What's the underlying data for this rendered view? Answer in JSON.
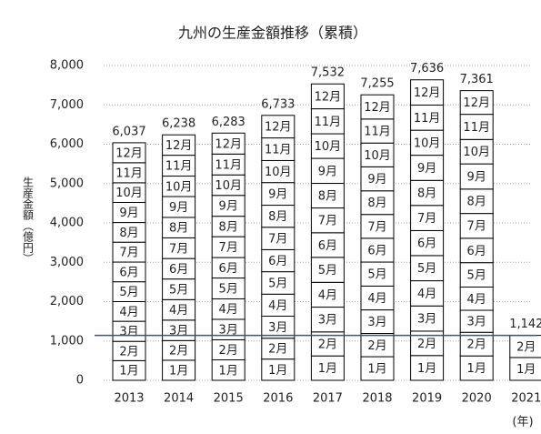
{
  "chart_data": {
    "type": "stacked-bar",
    "title": "九州の生産金額推移（累積）",
    "y_label": "生産金額（億円）",
    "x_unit": "(年)",
    "categories": [
      "2013",
      "2014",
      "2015",
      "2016",
      "2017",
      "2018",
      "2019",
      "2020",
      "2021"
    ],
    "series": [
      {
        "name": "1月",
        "color": "#ffffff",
        "values": [
          500,
          510,
          520,
          540,
          620,
          600,
          630,
          620,
          580
        ]
      },
      {
        "name": "2月",
        "color": "#ffffff",
        "values": [
          490,
          500,
          510,
          530,
          610,
          590,
          620,
          600,
          562
        ]
      },
      {
        "name": "3月",
        "color": "#ffffff",
        "values": [
          510,
          520,
          520,
          560,
          630,
          600,
          640,
          560,
          null
        ]
      },
      {
        "name": "4月",
        "color": "#ffffff",
        "values": [
          500,
          520,
          520,
          560,
          630,
          605,
          640,
          590,
          null
        ]
      },
      {
        "name": "5月",
        "color": "#ffffff",
        "values": [
          505,
          525,
          530,
          570,
          635,
          610,
          640,
          620,
          null
        ]
      },
      {
        "name": "6月",
        "color": "#ffffff",
        "values": [
          500,
          520,
          520,
          560,
          625,
          605,
          635,
          620,
          null
        ]
      },
      {
        "name": "7月",
        "color": "#ffffff",
        "values": [
          505,
          525,
          530,
          570,
          630,
          605,
          640,
          630,
          null
        ]
      },
      {
        "name": "8月",
        "color": "#ffffff",
        "values": [
          500,
          520,
          520,
          560,
          625,
          600,
          635,
          620,
          null
        ]
      },
      {
        "name": "9月",
        "color": "#ffffff",
        "values": [
          510,
          530,
          530,
          575,
          635,
          610,
          640,
          640,
          null
        ]
      },
      {
        "name": "10月",
        "color": "#ffffff",
        "values": [
          500,
          520,
          520,
          560,
          625,
          605,
          635,
          620,
          null
        ]
      },
      {
        "name": "11月",
        "color": "#ffffff",
        "values": [
          510,
          530,
          530,
          575,
          635,
          610,
          640,
          640,
          null
        ]
      },
      {
        "name": "12月",
        "color": "#ffffff",
        "values": [
          507,
          518,
          533,
          573,
          632,
          615,
          641,
          601,
          null
        ]
      }
    ],
    "totals": [
      6037,
      6238,
      6283,
      6733,
      7532,
      7255,
      7636,
      7361,
      1142
    ],
    "total_labels": [
      "6,037",
      "6,238",
      "6,283",
      "6,733",
      "7,532",
      "7,255",
      "7,636",
      "7,361",
      "1,142"
    ],
    "reference_line": 1142,
    "reference_color": "#44546a",
    "ylim": [
      0,
      8000
    ],
    "yticks": [
      0,
      {
        "value": 1000,
        "label": "1,000"
      },
      {
        "value": 2000,
        "label": "2,000"
      },
      {
        "value": 3000,
        "label": "3,000"
      },
      {
        "value": 4000,
        "label": "4,000"
      },
      {
        "value": 5000,
        "label": "5,000"
      },
      {
        "value": 6000,
        "label": "6,000"
      },
      {
        "value": 7000,
        "label": "7,000"
      },
      {
        "value": 8000,
        "label": "8,000"
      }
    ],
    "grid": true
  }
}
